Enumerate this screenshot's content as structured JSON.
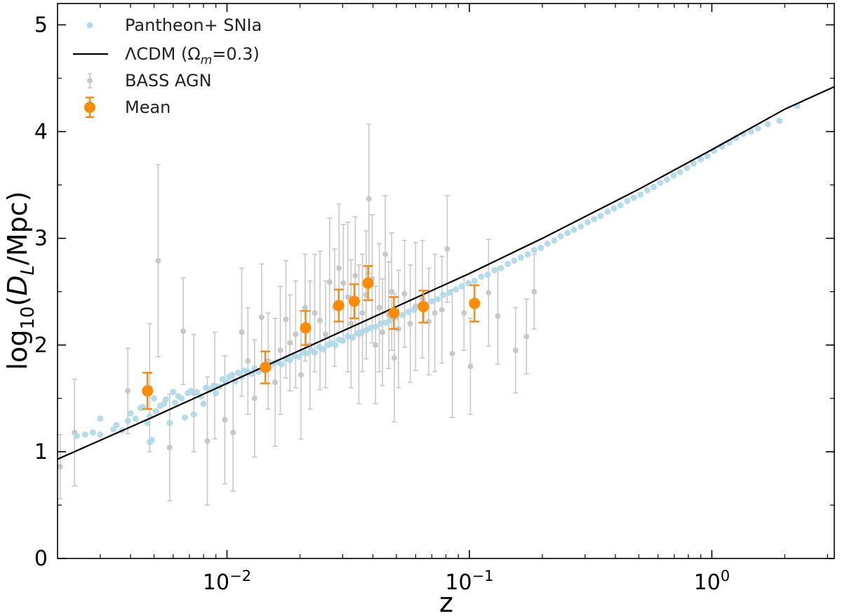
{
  "chart_data": {
    "type": "scatter",
    "xscale": "log",
    "xlim": [
      0.002,
      3.2
    ],
    "ylim": [
      0,
      5.2
    ],
    "xlabel": "z",
    "ylabel": "log₁₀(D_L/Mpc)",
    "x_ticks": [
      {
        "value": 0.01,
        "base": "10",
        "exp": "−2"
      },
      {
        "value": 0.1,
        "base": "10",
        "exp": "−1"
      },
      {
        "value": 1,
        "base": "10",
        "exp": "0"
      }
    ],
    "y_ticks": [
      {
        "value": 0,
        "label": "0"
      },
      {
        "value": 1,
        "label": "1"
      },
      {
        "value": 2,
        "label": "2"
      },
      {
        "value": 3,
        "label": "3"
      },
      {
        "value": 4,
        "label": "4"
      },
      {
        "value": 5,
        "label": "5"
      }
    ],
    "legend": {
      "placement": "top-left",
      "entries": [
        {
          "label": "Pantheon+ SNIa",
          "marker": "dot",
          "color": "#add8e6"
        },
        {
          "label": "ΛCDM (Ω",
          "sub": "m",
          "suffix": "=0.3)",
          "marker": "line",
          "color": "#000000"
        },
        {
          "label": "BASS AGN",
          "marker": "errorbar-dot",
          "color": "#c8c8c8"
        },
        {
          "label": "Mean",
          "marker": "errorbar-dot-large",
          "color": "#ff8c00"
        }
      ]
    },
    "colors": {
      "pantheon": "#add8e6",
      "lcdm": "#000000",
      "bass": "#c8c8c8",
      "mean": "#ff8c00",
      "mean_err": "#f28a16"
    },
    "series": [
      {
        "name": "Pantheon+ SNIa",
        "kind": "scatter",
        "points": [
          [
            0.0024,
            1.15
          ],
          [
            0.0026,
            1.16
          ],
          [
            0.0028,
            1.18
          ],
          [
            0.003,
            1.31
          ],
          [
            0.003,
            1.16
          ],
          [
            0.0034,
            1.21
          ],
          [
            0.0035,
            1.25
          ],
          [
            0.0037,
            1.2
          ],
          [
            0.0039,
            1.29
          ],
          [
            0.004,
            1.36
          ],
          [
            0.0042,
            1.31
          ],
          [
            0.0044,
            1.41
          ],
          [
            0.0045,
            1.42
          ],
          [
            0.0047,
            1.27
          ],
          [
            0.0048,
            1.33
          ],
          [
            0.0048,
            1.09
          ],
          [
            0.0049,
            1.11
          ],
          [
            0.005,
            1.5
          ],
          [
            0.0051,
            1.38
          ],
          [
            0.0053,
            1.43
          ],
          [
            0.0055,
            1.45
          ],
          [
            0.0056,
            1.49
          ],
          [
            0.0058,
            1.27
          ],
          [
            0.006,
            1.56
          ],
          [
            0.0061,
            1.46
          ],
          [
            0.0063,
            1.52
          ],
          [
            0.0065,
            1.5
          ],
          [
            0.0067,
            1.32
          ],
          [
            0.0069,
            1.55
          ],
          [
            0.0071,
            1.57
          ],
          [
            0.0073,
            1.35
          ],
          [
            0.0075,
            1.56
          ],
          [
            0.0078,
            1.52
          ],
          [
            0.008,
            1.45
          ],
          [
            0.0082,
            1.6
          ],
          [
            0.0085,
            1.58
          ],
          [
            0.0088,
            1.62
          ],
          [
            0.009,
            1.55
          ],
          [
            0.0093,
            1.61
          ],
          [
            0.0096,
            1.68
          ],
          [
            0.0099,
            1.65
          ],
          [
            0.0102,
            1.7
          ],
          [
            0.0105,
            1.72
          ],
          [
            0.0108,
            1.66
          ],
          [
            0.0111,
            1.74
          ],
          [
            0.0115,
            1.7
          ],
          [
            0.0118,
            1.76
          ],
          [
            0.0122,
            1.75
          ],
          [
            0.0126,
            1.73
          ],
          [
            0.013,
            1.78
          ],
          [
            0.0135,
            1.75
          ],
          [
            0.014,
            1.79
          ],
          [
            0.0145,
            1.81
          ],
          [
            0.015,
            1.79
          ],
          [
            0.0156,
            1.83
          ],
          [
            0.0162,
            1.84
          ],
          [
            0.0168,
            1.82
          ],
          [
            0.0175,
            1.87
          ],
          [
            0.0182,
            1.86
          ],
          [
            0.019,
            1.9
          ],
          [
            0.0198,
            1.89
          ],
          [
            0.0205,
            1.93
          ],
          [
            0.0213,
            1.92
          ],
          [
            0.0222,
            1.95
          ],
          [
            0.023,
            1.93
          ],
          [
            0.024,
            1.98
          ],
          [
            0.025,
            1.96
          ],
          [
            0.026,
            2.0
          ],
          [
            0.027,
            2.02
          ],
          [
            0.028,
            2.0
          ],
          [
            0.029,
            2.05
          ],
          [
            0.03,
            2.04
          ],
          [
            0.0315,
            2.08
          ],
          [
            0.033,
            2.07
          ],
          [
            0.0345,
            2.11
          ],
          [
            0.036,
            2.12
          ],
          [
            0.0375,
            2.14
          ],
          [
            0.039,
            2.16
          ],
          [
            0.041,
            2.17
          ],
          [
            0.043,
            2.2
          ],
          [
            0.045,
            2.21
          ],
          [
            0.047,
            2.23
          ],
          [
            0.05,
            2.26
          ],
          [
            0.053,
            2.28
          ],
          [
            0.056,
            2.31
          ],
          [
            0.059,
            2.33
          ],
          [
            0.062,
            2.36
          ],
          [
            0.066,
            2.38
          ],
          [
            0.07,
            2.41
          ],
          [
            0.074,
            2.43
          ],
          [
            0.078,
            2.47
          ],
          [
            0.083,
            2.49
          ],
          [
            0.088,
            2.52
          ],
          [
            0.093,
            2.55
          ],
          [
            0.099,
            2.58
          ],
          [
            0.105,
            2.6
          ],
          [
            0.112,
            2.64
          ],
          [
            0.119,
            2.66
          ],
          [
            0.127,
            2.7
          ],
          [
            0.135,
            2.72
          ],
          [
            0.144,
            2.76
          ],
          [
            0.153,
            2.79
          ],
          [
            0.163,
            2.82
          ],
          [
            0.174,
            2.85
          ],
          [
            0.185,
            2.89
          ],
          [
            0.197,
            2.91
          ],
          [
            0.21,
            2.95
          ],
          [
            0.224,
            2.98
          ],
          [
            0.238,
            3.02
          ],
          [
            0.254,
            3.05
          ],
          [
            0.27,
            3.08
          ],
          [
            0.288,
            3.11
          ],
          [
            0.307,
            3.15
          ],
          [
            0.327,
            3.18
          ],
          [
            0.348,
            3.21
          ],
          [
            0.371,
            3.25
          ],
          [
            0.395,
            3.28
          ],
          [
            0.42,
            3.31
          ],
          [
            0.448,
            3.35
          ],
          [
            0.477,
            3.38
          ],
          [
            0.508,
            3.41
          ],
          [
            0.541,
            3.45
          ],
          [
            0.576,
            3.48
          ],
          [
            0.613,
            3.52
          ],
          [
            0.653,
            3.55
          ],
          [
            0.696,
            3.59
          ],
          [
            0.74,
            3.62
          ],
          [
            0.79,
            3.66
          ],
          [
            0.84,
            3.7
          ],
          [
            0.9,
            3.74
          ],
          [
            0.96,
            3.77
          ],
          [
            1.02,
            3.82
          ],
          [
            1.1,
            3.86
          ],
          [
            1.18,
            3.9
          ],
          [
            1.26,
            3.94
          ],
          [
            1.35,
            3.98
          ],
          [
            1.45,
            4.0
          ],
          [
            1.55,
            4.03
          ],
          [
            1.7,
            4.07
          ],
          [
            1.9,
            4.1
          ],
          [
            2.25,
            4.24
          ]
        ]
      },
      {
        "name": "ΛCDM (Ωm=0.3)",
        "kind": "line",
        "points": [
          [
            0.002,
            0.93
          ],
          [
            0.005,
            1.33
          ],
          [
            0.01,
            1.64
          ],
          [
            0.02,
            1.95
          ],
          [
            0.05,
            2.36
          ],
          [
            0.1,
            2.67
          ],
          [
            0.2,
            3.0
          ],
          [
            0.5,
            3.46
          ],
          [
            1.0,
            3.83
          ],
          [
            2.0,
            4.21
          ],
          [
            3.2,
            4.42
          ]
        ]
      },
      {
        "name": "BASS AGN",
        "kind": "errorbar",
        "points": [
          [
            0.00205,
            0.86,
            0.3
          ],
          [
            0.00235,
            1.18,
            0.5
          ],
          [
            0.0039,
            1.57,
            0.4
          ],
          [
            0.0048,
            1.6,
            0.6
          ],
          [
            0.0052,
            2.79,
            0.9
          ],
          [
            0.0058,
            1.04,
            0.5
          ],
          [
            0.0066,
            2.13,
            0.5
          ],
          [
            0.0073,
            1.55,
            0.55
          ],
          [
            0.0083,
            1.1,
            0.6
          ],
          [
            0.0089,
            1.62,
            0.5
          ],
          [
            0.0098,
            1.3,
            0.6
          ],
          [
            0.0106,
            1.18,
            0.55
          ],
          [
            0.0115,
            2.12,
            0.6
          ],
          [
            0.0122,
            1.85,
            0.5
          ],
          [
            0.013,
            1.5,
            0.55
          ],
          [
            0.0139,
            2.26,
            0.5
          ],
          [
            0.0148,
            1.85,
            0.45
          ],
          [
            0.0158,
            1.65,
            0.6
          ],
          [
            0.0166,
            1.95,
            0.6
          ],
          [
            0.0175,
            2.24,
            0.55
          ],
          [
            0.0182,
            2.02,
            0.45
          ],
          [
            0.0192,
            2.1,
            0.5
          ],
          [
            0.0202,
            1.72,
            0.6
          ],
          [
            0.021,
            2.35,
            0.5
          ],
          [
            0.022,
            2.0,
            0.6
          ],
          [
            0.023,
            2.3,
            0.55
          ],
          [
            0.0242,
            2.23,
            0.65
          ],
          [
            0.0255,
            2.1,
            0.5
          ],
          [
            0.0265,
            2.59,
            0.6
          ],
          [
            0.0278,
            2.35,
            0.55
          ],
          [
            0.029,
            2.72,
            0.6
          ],
          [
            0.0302,
            2.58,
            0.55
          ],
          [
            0.0315,
            2.45,
            0.7
          ],
          [
            0.0325,
            2.2,
            0.6
          ],
          [
            0.0338,
            2.65,
            0.55
          ],
          [
            0.035,
            2.1,
            0.65
          ],
          [
            0.0362,
            2.3,
            0.55
          ],
          [
            0.0375,
            2.47,
            0.6
          ],
          [
            0.0385,
            3.37,
            0.7
          ],
          [
            0.0397,
            2.62,
            0.6
          ],
          [
            0.041,
            2.0,
            0.55
          ],
          [
            0.0425,
            2.35,
            0.6
          ],
          [
            0.0438,
            2.12,
            0.5
          ],
          [
            0.045,
            2.85,
            0.55
          ],
          [
            0.0465,
            2.28,
            0.5
          ],
          [
            0.0478,
            2.5,
            0.55
          ],
          [
            0.049,
            1.88,
            0.6
          ],
          [
            0.051,
            2.15,
            0.55
          ],
          [
            0.054,
            2.48,
            0.5
          ],
          [
            0.057,
            2.2,
            0.55
          ],
          [
            0.06,
            2.36,
            0.6
          ],
          [
            0.064,
            2.43,
            0.55
          ],
          [
            0.068,
            2.22,
            0.5
          ],
          [
            0.072,
            2.3,
            0.55
          ],
          [
            0.077,
            2.33,
            0.5
          ],
          [
            0.081,
            2.9,
            0.5
          ],
          [
            0.085,
            1.92,
            0.6
          ],
          [
            0.095,
            2.3,
            0.35
          ],
          [
            0.101,
            1.8,
            0.45
          ],
          [
            0.12,
            2.49,
            0.5
          ],
          [
            0.131,
            2.27,
            0.45
          ],
          [
            0.155,
            1.95,
            0.4
          ],
          [
            0.172,
            2.08,
            0.35
          ],
          [
            0.185,
            2.5,
            0.35
          ]
        ]
      },
      {
        "name": "Mean",
        "kind": "errorbar",
        "points": [
          [
            0.0047,
            1.57,
            0.17
          ],
          [
            0.0144,
            1.79,
            0.15
          ],
          [
            0.0211,
            2.16,
            0.16
          ],
          [
            0.0289,
            2.37,
            0.15
          ],
          [
            0.0335,
            2.41,
            0.16
          ],
          [
            0.0382,
            2.58,
            0.16
          ],
          [
            0.0488,
            2.3,
            0.15
          ],
          [
            0.0646,
            2.36,
            0.15
          ],
          [
            0.105,
            2.39,
            0.17
          ]
        ]
      }
    ]
  }
}
